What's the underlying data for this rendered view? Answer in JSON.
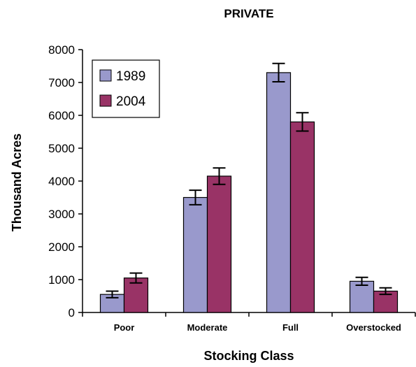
{
  "chart_data": {
    "type": "bar",
    "title": "PRIVATE",
    "xlabel": "Stocking Class",
    "ylabel": "Thousand Acres",
    "categories": [
      "Poor",
      "Moderate",
      "Full",
      "Overstocked"
    ],
    "series": [
      {
        "name": "1989",
        "color": "#9999cc",
        "values": [
          550,
          3500,
          7300,
          950
        ],
        "error": [
          100,
          220,
          280,
          120
        ]
      },
      {
        "name": "2004",
        "color": "#993366",
        "values": [
          1050,
          4150,
          5800,
          650
        ],
        "error": [
          150,
          250,
          280,
          100
        ]
      }
    ],
    "ylim": [
      0,
      8000
    ],
    "yticks": [
      0,
      1000,
      2000,
      3000,
      4000,
      5000,
      6000,
      7000,
      8000
    ],
    "error_bars": true,
    "grid": false,
    "legend_position": "top-left"
  }
}
